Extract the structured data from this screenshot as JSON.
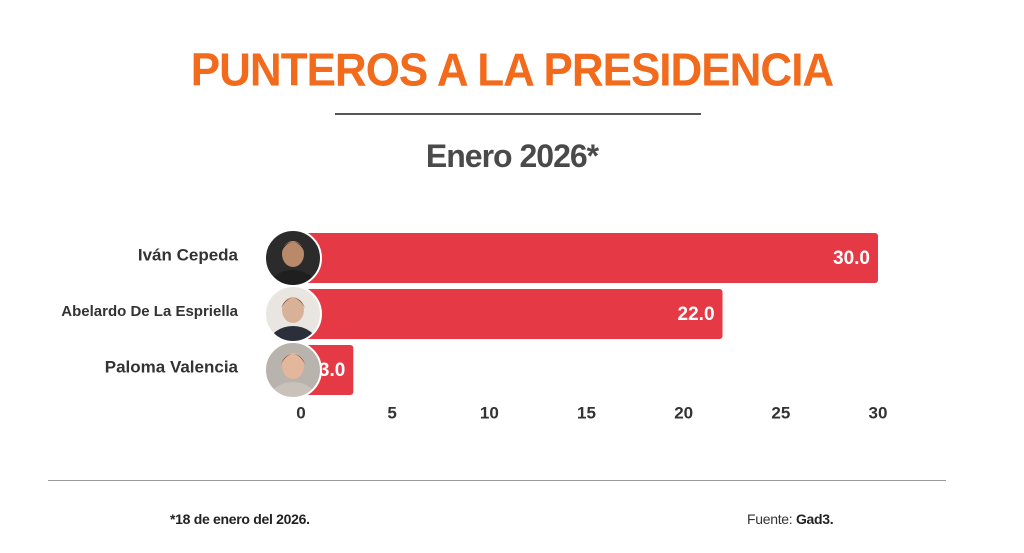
{
  "header": {
    "title": "PUNTEROS A LA PRESIDENCIA",
    "subtitle": "Enero 2026*"
  },
  "footer": {
    "footnote": "*18 de enero del 2026.",
    "source_prefix": "Fuente: ",
    "source_name": "Gad3."
  },
  "colors": {
    "title": "#f26a1b",
    "bar": "#e63946",
    "axis_text": "#333333"
  },
  "chart_data": {
    "type": "bar",
    "orientation": "horizontal",
    "categories": [
      "Iván Cepeda",
      "Abelardo De La Espriella",
      "Paloma Valencia"
    ],
    "values": [
      30.0,
      22.0,
      3.0
    ],
    "value_labels": [
      "30.0",
      "22.0",
      "3.0"
    ],
    "xlim": [
      0,
      30
    ],
    "xticks": [
      0,
      5,
      10,
      15,
      20,
      25,
      30
    ],
    "grid": false,
    "legend": "none",
    "avatars": [
      "candidate-photo",
      "candidate-photo",
      "candidate-photo"
    ]
  }
}
